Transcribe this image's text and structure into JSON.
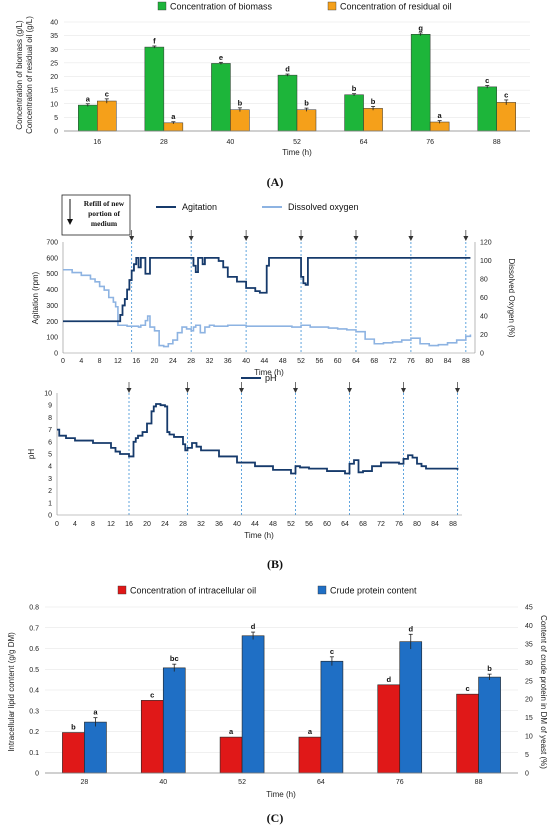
{
  "chart_data": [
    {
      "type": "bar",
      "panel_label": "(A)",
      "categories": [
        "16",
        "28",
        "40",
        "52",
        "64",
        "76",
        "88"
      ],
      "series": [
        {
          "name": "Concentration of biomass",
          "color": "#1db53a",
          "values": [
            9.5,
            30.8,
            24.8,
            20.5,
            13.3,
            35.5,
            16.2
          ],
          "errors": [
            0.5,
            0.4,
            0.4,
            0.4,
            0.4,
            0.5,
            0.5
          ],
          "letters": [
            "a",
            "f",
            "e",
            "d",
            "b",
            "g",
            "c"
          ]
        },
        {
          "name": "Concentration of residual oil",
          "color": "#f5a01a",
          "values": [
            11.0,
            3.0,
            7.8,
            7.8,
            8.3,
            3.3,
            10.5
          ],
          "errors": [
            0.8,
            0.4,
            0.7,
            0.6,
            0.7,
            0.5,
            0.9
          ],
          "letters": [
            "c",
            "a",
            "b",
            "b",
            "b",
            "a",
            "c"
          ]
        }
      ],
      "ylabel_lines": [
        "Concentration of biomass (g/L)",
        "Concentration of residual oil (g/L)"
      ],
      "xlabel": "Time (h)",
      "ylim": [
        0,
        40
      ],
      "yticks": [
        "0",
        "5",
        "10",
        "15",
        "20",
        "25",
        "30",
        "35",
        "40"
      ],
      "legend": "top"
    },
    {
      "type": "line",
      "panel_label": "(B)",
      "annotation_lines": [
        "Refill of new",
        "portion of",
        "medium"
      ],
      "xlabel": "Time (h)",
      "xlim": [
        0,
        90
      ],
      "xticks": [
        "0",
        "4",
        "8",
        "12",
        "16",
        "20",
        "24",
        "28",
        "32",
        "36",
        "40",
        "44",
        "48",
        "52",
        "56",
        "60",
        "64",
        "68",
        "72",
        "76",
        "80",
        "84",
        "88"
      ],
      "refills": [
        15,
        28,
        40,
        52,
        64,
        76,
        88
      ],
      "top": {
        "ylabel": "Agitation (rpm)",
        "ylabel_right": "Dissolved Oxygen (%)",
        "ylim": [
          0,
          700
        ],
        "yticks": [
          "0",
          "100",
          "200",
          "300",
          "400",
          "500",
          "600",
          "700"
        ],
        "ylim_right": [
          0,
          120
        ],
        "yticks_right": [
          "0",
          "20",
          "40",
          "60",
          "80",
          "100",
          "120"
        ],
        "series": [
          {
            "name": "Agitation",
            "color": "#163a6b",
            "x": [
              0,
              12,
              12.5,
              13,
              13.5,
              14,
              14.5,
              15,
              15.5,
              16,
              16.5,
              17,
              17.5,
              18,
              19,
              19.5,
              20,
              26,
              27,
              28,
              28.5,
              29,
              29.5,
              30,
              30.5,
              31,
              32,
              34,
              35,
              36,
              38,
              40,
              42,
              43,
              44,
              44.5,
              45,
              46,
              50,
              51,
              51.5,
              52,
              52.5,
              53,
              53.5,
              54,
              60,
              70,
              80,
              88,
              89
            ],
            "y": [
              200,
              200,
              240,
              300,
              340,
              400,
              460,
              520,
              560,
              600,
              540,
              600,
              600,
              500,
              600,
              600,
              600,
              600,
              600,
              600,
              550,
              510,
              600,
              600,
              560,
              600,
              600,
              580,
              540,
              480,
              450,
              410,
              390,
              380,
              380,
              550,
              600,
              600,
              600,
              600,
              600,
              480,
              440,
              430,
              600,
              600,
              600,
              600,
              600,
              600,
              600
            ]
          },
          {
            "name": "Dissolved oxygen",
            "color": "#8db3e2",
            "axis": "right",
            "x": [
              0,
              2,
              4,
              6,
              7,
              8,
              9,
              10,
              11,
              11.5,
              12,
              13,
              14,
              15,
              16,
              16.5,
              17,
              18,
              18.5,
              19,
              20,
              21,
              22,
              23,
              24,
              25,
              26,
              27,
              28,
              28.5,
              29,
              30,
              31,
              32,
              33,
              36,
              40,
              44,
              48,
              50,
              52,
              54,
              56,
              58,
              60,
              62,
              64,
              66,
              68,
              70,
              72,
              74,
              76,
              78,
              80,
              82,
              84,
              86,
              88,
              89
            ],
            "y": [
              90,
              87,
              84,
              80,
              77,
              72,
              68,
              60,
              55,
              50,
              30,
              30,
              29,
              29,
              29,
              28,
              30,
              35,
              40,
              28,
              24,
              8,
              7,
              10,
              14,
              22,
              28,
              26,
              24,
              28,
              30,
              22,
              28,
              30,
              29,
              30,
              29,
              29,
              29,
              28,
              30,
              28,
              28,
              27,
              26,
              25,
              23,
              15,
              10,
              11,
              12,
              14,
              16,
              10,
              8,
              9,
              11,
              14,
              18,
              20
            ]
          }
        ]
      },
      "bottom": {
        "ylabel": "pH",
        "ylim": [
          0,
          10
        ],
        "yticks": [
          "0",
          "1",
          "2",
          "3",
          "4",
          "5",
          "6",
          "7",
          "8",
          "9",
          "10"
        ],
        "series": [
          {
            "name": "pH",
            "color": "#163a6b",
            "x": [
              0,
              0.5,
              2,
              4,
              8,
              12,
              13,
              14,
              16,
              17,
              17.5,
              18,
              19,
              20,
              21,
              21.5,
              22,
              23,
              24,
              24.5,
              25,
              26,
              28,
              28.5,
              29,
              30,
              31,
              32,
              36,
              40,
              44,
              48,
              52,
              53,
              54,
              56,
              60,
              64,
              65,
              66,
              67,
              68,
              70,
              72,
              74,
              76,
              77,
              78,
              79,
              80,
              81,
              82,
              84,
              86,
              88,
              89
            ],
            "y": [
              7.0,
              6.5,
              6.3,
              6.1,
              5.9,
              5.5,
              5.2,
              5.0,
              4.8,
              6.0,
              6.3,
              6.5,
              6.8,
              7.5,
              8.5,
              8.9,
              9.1,
              9.0,
              8.9,
              6.8,
              6.6,
              6.4,
              5.8,
              5.3,
              5.5,
              5.9,
              5.6,
              5.3,
              4.8,
              4.3,
              4.0,
              3.7,
              3.4,
              4.0,
              3.9,
              3.8,
              3.6,
              3.4,
              4.2,
              4.5,
              3.5,
              3.6,
              4.0,
              4.3,
              4.3,
              4.2,
              4.6,
              4.9,
              4.7,
              4.2,
              4.0,
              3.8,
              3.8,
              3.8,
              3.8,
              3.7
            ]
          }
        ]
      }
    },
    {
      "type": "bar",
      "panel_label": "(C)",
      "categories": [
        "28",
        "40",
        "52",
        "64",
        "76",
        "88"
      ],
      "series": [
        {
          "name": "Concentration of intracellular oil",
          "color": "#e01818",
          "axis": "left",
          "values": [
            0.195,
            0.35,
            0.173,
            0.173,
            0.425,
            0.38
          ],
          "errors": [
            0,
            0,
            0,
            0,
            0,
            0
          ],
          "letters": [
            "b",
            "c",
            "a",
            "a",
            "d",
            "c"
          ]
        },
        {
          "name": "Crude protein content",
          "color": "#1f6fc5",
          "axis": "right",
          "values": [
            13.8,
            28.5,
            37.2,
            30.3,
            35.6,
            26.0
          ],
          "errors": [
            1.2,
            1.0,
            1.0,
            1.2,
            2.0,
            0.8
          ],
          "letters": [
            "a",
            "bc",
            "d",
            "c",
            "d",
            "b"
          ]
        }
      ],
      "ylabel": "Intracellular lipid content (g/g DM)",
      "ylabel_right": "Content of crude protein in DM of yeast (%)",
      "xlabel": "Time (h)",
      "ylim": [
        0,
        0.8
      ],
      "yticks": [
        "0",
        "0.1",
        "0.2",
        "0.3",
        "0.4",
        "0.5",
        "0.6",
        "0.7",
        "0.8"
      ],
      "ylim_right": [
        0,
        45
      ],
      "yticks_right": [
        "0",
        "5",
        "10",
        "15",
        "20",
        "25",
        "30",
        "35",
        "40",
        "45"
      ],
      "legend": "top"
    }
  ]
}
